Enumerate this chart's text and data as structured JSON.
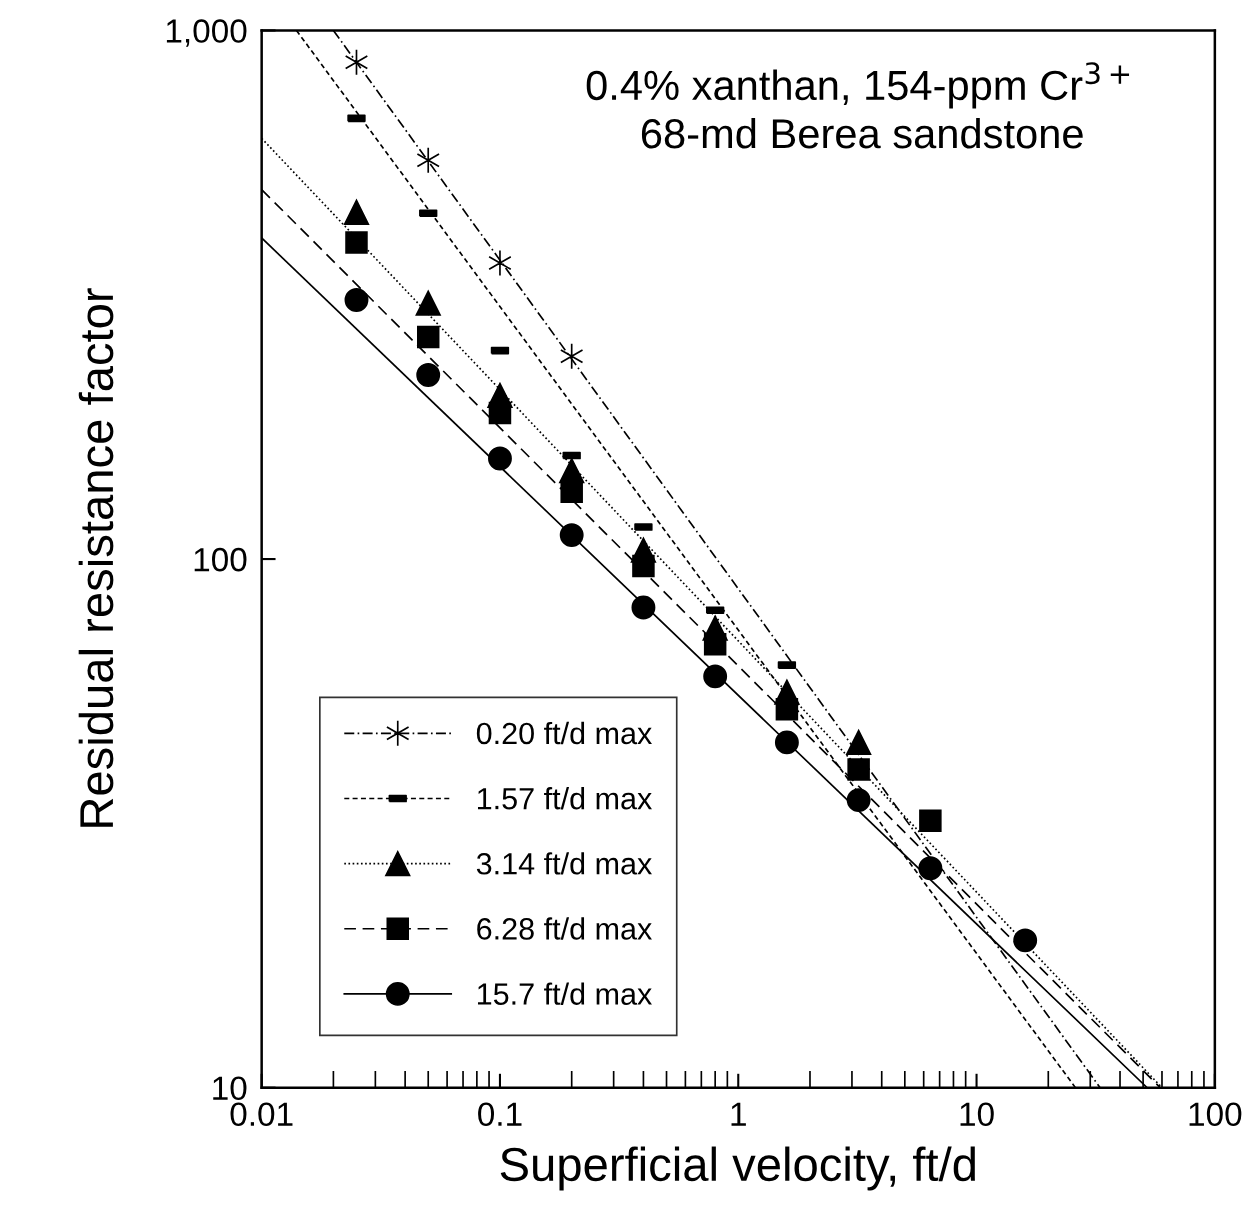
{
  "chart_data": {
    "type": "scatter",
    "xlabel": "Superficial velocity, ft/d",
    "ylabel": "Residual resistance factor",
    "annotations": [
      "0.4% xanthan, 154-ppm Cr$^{3+}$\n68-md Berea sandstone"
    ],
    "log": "xy",
    "xlim": [
      0.01,
      100
    ],
    "ylim": [
      10,
      1000
    ],
    "xticks": [
      0.01,
      0.1,
      1,
      10,
      100
    ],
    "yticks": [
      10,
      100,
      {
        "value": 1000,
        "label": "1,000"
      }
    ],
    "grid": false,
    "legend": "lower left",
    "series": [
      {
        "name": "0.20 ft/d max",
        "color": "#000000",
        "marker": "cross",
        "line_style": "dashdot",
        "x": [
          0.025,
          0.05,
          0.1,
          0.2
        ],
        "values": [
          871,
          568,
          363,
          242
        ]
      },
      {
        "name": "1.57 ft/d max",
        "color": "#000000",
        "line_style": "dashed",
        "x": [
          0.025,
          0.05,
          0.1,
          0.2,
          0.4,
          0.8,
          1.6
        ],
        "values": [
          682,
          451,
          248,
          157,
          115,
          80,
          63
        ]
      },
      {
        "name": "3.14 ft/d max",
        "color": "#000000",
        "marker": "triangle",
        "line_style": "dotted",
        "x": [
          0.025,
          0.05,
          0.1,
          0.2,
          0.4,
          0.8,
          1.6,
          3.2
        ],
        "values": [
          453,
          305,
          204,
          147,
          104,
          74,
          56,
          45
        ]
      },
      {
        "name": "6.28 ft/d max",
        "color": "#000000",
        "marker": "square",
        "line_style": "longdash",
        "x": [
          0.025,
          0.05,
          0.1,
          0.2,
          0.4,
          0.8,
          1.6,
          3.2,
          6.4
        ],
        "values": [
          397,
          263,
          189,
          134,
          97,
          69,
          52,
          40,
          32
        ]
      },
      {
        "name": "15.7 ft/d max",
        "color": "#000000",
        "marker": "circle",
        "line_style": "solid",
        "x": [
          0.025,
          0.05,
          0.1,
          0.2,
          0.4,
          0.8,
          1.6,
          3.2,
          6.4,
          16
        ],
        "values": [
          309,
          223,
          155,
          111,
          81,
          60,
          45,
          35,
          26,
          19
        ]
      },
      {
        "type": "line",
        "color": "#000000",
        "line_style": "dashdot",
        "x": [
          0.02,
          33
        ],
        "values": [
          1000,
          10
        ]
      },
      {
        "type": "line",
        "color": "#000000",
        "line_style": "dashed",
        "x": [
          0.014,
          26
        ],
        "values": [
          1000,
          10
        ]
      },
      {
        "type": "line",
        "color": "#000000",
        "line_style": "dotted",
        "x": [
          0.01,
          60
        ],
        "values": [
          625,
          10
        ]
      },
      {
        "type": "line",
        "color": "#000000",
        "line_style": "longdash",
        "x": [
          0.01,
          59
        ],
        "values": [
          500,
          10
        ]
      },
      {
        "type": "line",
        "color": "#000000",
        "line_style": "solid",
        "x": [
          0.01,
          52
        ],
        "values": [
          405,
          10
        ]
      }
    ]
  }
}
